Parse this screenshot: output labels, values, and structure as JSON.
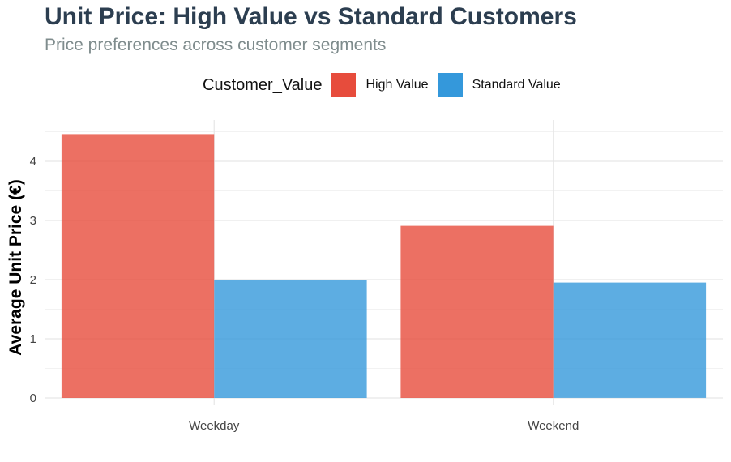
{
  "chart_data": {
    "type": "bar",
    "title": "Unit Price: High Value vs Standard Customers",
    "subtitle": "Price preferences across customer segments",
    "categories": [
      "Weekday",
      "Weekend"
    ],
    "series": [
      {
        "name": "High Value",
        "values": [
          4.46,
          2.91
        ]
      },
      {
        "name": "Standard Value",
        "values": [
          1.99,
          1.95
        ]
      }
    ],
    "xlabel": "",
    "ylabel": "Average Unit Price (€)",
    "ylim": [
      0,
      4.7
    ],
    "yticks": [
      0,
      1,
      2,
      3,
      4
    ],
    "legend": {
      "title": "Customer_Value",
      "position": "top"
    },
    "grid": true
  },
  "colors": {
    "high_value": "#e74c3c",
    "standard_value": "#3498db",
    "title": "#2c3e50",
    "subtitle": "#7f8c8d"
  }
}
